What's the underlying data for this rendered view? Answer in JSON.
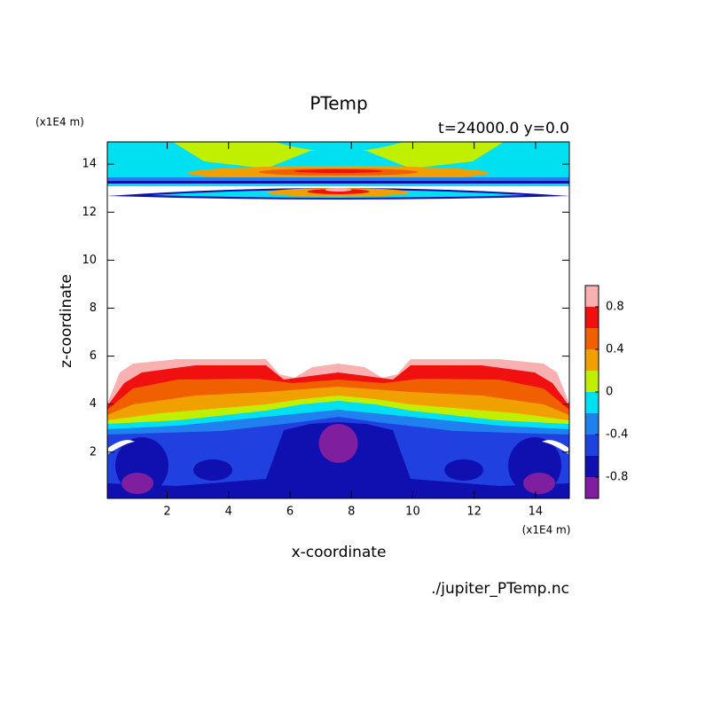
{
  "chart_data": {
    "type": "contour",
    "title": "PTemp",
    "subtitle": "t=24000.0 y=0.0",
    "xlabel": "x-coordinate",
    "ylabel": "z-coordinate",
    "x_unit": "(x1E4 m)",
    "y_unit": "(x1E4 m)",
    "source": "./jupiter_PTemp.nc",
    "xlim": [
      0.05,
      15.1
    ],
    "ylim": [
      0.07,
      14.93
    ],
    "xticks": [
      2,
      4,
      6,
      8,
      10,
      12,
      14
    ],
    "yticks": [
      2,
      4,
      6,
      8,
      10,
      12,
      14
    ],
    "colorbar": {
      "clim": [
        -1,
        1
      ],
      "levels": [
        -1,
        -0.8,
        -0.6,
        -0.4,
        -0.2,
        0,
        0.2,
        0.4,
        0.6,
        0.8,
        1
      ],
      "colors": [
        "#7f1fa0",
        "#1010b0",
        "#2040e0",
        "#2080f0",
        "#00e0f0",
        "#c0f000",
        "#f0a000",
        "#f06000",
        "#f01010",
        "#f8b0b0"
      ],
      "ticks": [
        -0.8,
        -0.4,
        0,
        0.4,
        0.8
      ]
    }
  }
}
